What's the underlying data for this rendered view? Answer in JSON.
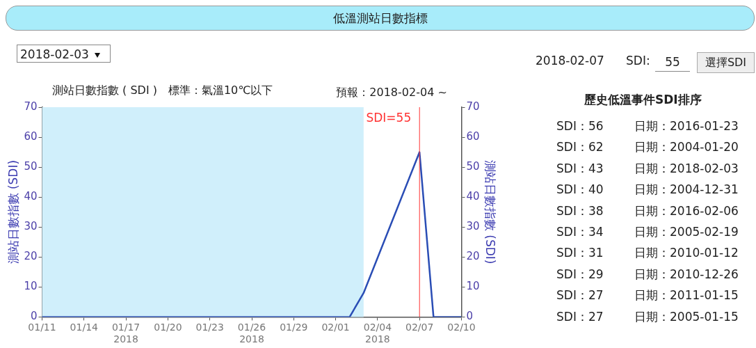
{
  "chart_data": {
    "type": "line",
    "title": "低溫測站日數指標",
    "subtitle": "測站日數指數 ( SDI )　標準：氣溫10℃以下",
    "ylabel": "測站日數指數 (SDI)",
    "y2label": "測站日數指數 (SDI)",
    "x": [
      "2018-01-11",
      "2018-02-02",
      "2018-02-03",
      "2018-02-07",
      "2018-02-08",
      "2018-02-10"
    ],
    "series": [
      {
        "color": "#2a4db5",
        "values": [
          0,
          0,
          8,
          55,
          0,
          0
        ]
      }
    ],
    "xlim": [
      "2018-01-11",
      "2018-02-10"
    ],
    "xticks": [
      {
        "value": "2018-01-11",
        "label": "01/11"
      },
      {
        "value": "2018-01-14",
        "label": "01/14"
      },
      {
        "value": "2018-01-17",
        "label": "01/17\n2018"
      },
      {
        "value": "2018-01-20",
        "label": "01/20"
      },
      {
        "value": "2018-01-23",
        "label": "01/23"
      },
      {
        "value": "2018-01-26",
        "label": "01/26\n2018"
      },
      {
        "value": "2018-01-29",
        "label": "01/29"
      },
      {
        "value": "2018-02-01",
        "label": "02/01"
      },
      {
        "value": "2018-02-04",
        "label": "02/04\n2018"
      },
      {
        "value": "2018-02-07",
        "label": "02/07"
      },
      {
        "value": "2018-02-10",
        "label": "02/10"
      }
    ],
    "ylim": [
      0,
      70
    ],
    "yticks": [
      0,
      10,
      20,
      30,
      40,
      50,
      60,
      70
    ],
    "y2lim": [
      0,
      70
    ],
    "y2ticks": [
      0,
      10,
      20,
      30,
      40,
      50,
      60,
      70
    ],
    "bands": [
      {
        "axis": "x",
        "from": "2018-01-11",
        "to": "2018-02-03",
        "label": "預報：2018-02-04 ~",
        "color": "#d0effb"
      }
    ],
    "ref_lines": [
      {
        "axis": "x",
        "value": "2018-02-07",
        "label": "SDI=55",
        "color": "#ff3333"
      }
    ],
    "grid": false,
    "legend": false,
    "marker": "none",
    "line_style": "solid",
    "annotations": [
      "2018-02-03",
      "2018-02-07",
      "SDI:",
      "55",
      "選擇SDI",
      "歷史低溫事件SDI排序",
      "SDI：56",
      "日期：2016-01-23",
      "SDI：62",
      "日期：2004-01-20",
      "SDI：43",
      "日期：2018-02-03",
      "SDI：40",
      "日期：2004-12-31",
      "SDI：38",
      "日期：2016-02-06",
      "SDI：34",
      "日期：2005-02-19",
      "SDI：31",
      "日期：2010-01-12",
      "SDI：29",
      "日期：2010-12-26",
      "SDI：27",
      "日期：2011-01-15",
      "SDI：27",
      "日期：2005-01-15"
    ]
  }
}
